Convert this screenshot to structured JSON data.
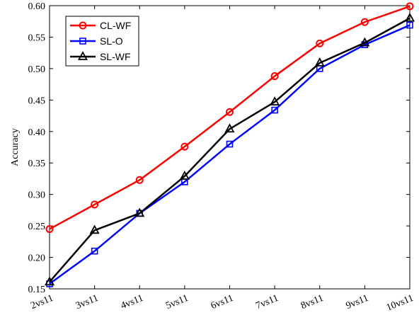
{
  "chart_data": {
    "type": "line",
    "title": "",
    "xlabel": "",
    "ylabel": "Accuracy",
    "categories": [
      "2vs11",
      "3vs11",
      "4vs11",
      "5vs11",
      "6vs11",
      "7vs11",
      "8vs11",
      "9vs11",
      "10vs11"
    ],
    "ylim": [
      0.15,
      0.6
    ],
    "yticks": [
      "0.15",
      "0.20",
      "0.25",
      "0.30",
      "0.35",
      "0.40",
      "0.45",
      "0.50",
      "0.55",
      "0.60"
    ],
    "grid": false,
    "legend": "top-left",
    "series": [
      {
        "name": "CL-WF",
        "color": "#ff0000",
        "marker": "circle",
        "values": [
          0.245,
          0.284,
          0.323,
          0.376,
          0.431,
          0.488,
          0.54,
          0.574,
          0.599
        ]
      },
      {
        "name": "SL-O",
        "color": "#0000ff",
        "marker": "square",
        "values": [
          0.158,
          0.21,
          0.27,
          0.32,
          0.38,
          0.434,
          0.5,
          0.538,
          0.569
        ]
      },
      {
        "name": "SL-WF",
        "color": "#000000",
        "marker": "triangle",
        "values": [
          0.161,
          0.243,
          0.27,
          0.329,
          0.404,
          0.447,
          0.509,
          0.541,
          0.58
        ]
      }
    ]
  }
}
